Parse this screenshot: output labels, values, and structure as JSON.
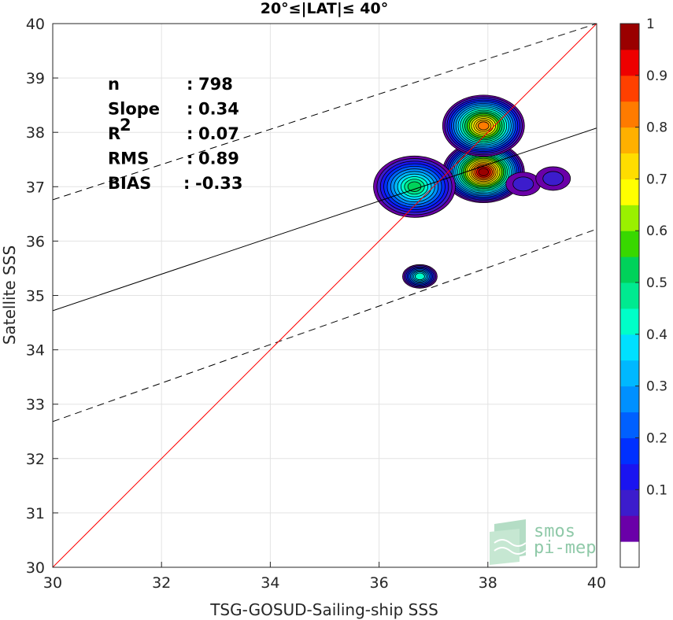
{
  "chart_data": {
    "type": "heatmap",
    "subtype": "density contour scatter",
    "title": "20°≤|LAT|≤ 40°",
    "xlabel": "TSG-GOSUD-Sailing-ship SSS",
    "ylabel": "Satellite SSS",
    "xlim": [
      30,
      40
    ],
    "ylim": [
      30,
      40
    ],
    "xticks": [
      "30",
      "32",
      "34",
      "36",
      "38",
      "40"
    ],
    "yticks": [
      "30",
      "31",
      "32",
      "33",
      "34",
      "35",
      "36",
      "37",
      "38",
      "39",
      "40"
    ],
    "grid": true,
    "stats": [
      {
        "label": "n",
        "sep": ":",
        "value": "798"
      },
      {
        "label": "Slope",
        "sep": ":",
        "value": "0.34"
      },
      {
        "label": "R",
        "sup": "2",
        "sep": ":",
        "value": "0.07"
      },
      {
        "label": "RMS",
        "sep": ":",
        "value": "0.89"
      },
      {
        "label": "BIAS",
        "sep": ":",
        "value": "-0.33"
      }
    ],
    "lines": {
      "identity": {
        "x": [
          30,
          40
        ],
        "y": [
          30,
          40
        ],
        "color": "#ff0000"
      },
      "fit": {
        "x": [
          30,
          40
        ],
        "y": [
          34.72,
          38.08
        ],
        "color": "#000000"
      },
      "fit_upper": {
        "x": [
          30,
          40
        ],
        "y": [
          36.76,
          40.0
        ],
        "color": "#000000",
        "dash": true
      },
      "fit_lower": {
        "x": [
          30,
          40
        ],
        "y": [
          32.68,
          36.22
        ],
        "color": "#000000",
        "dash": true
      }
    },
    "density_peaks": [
      {
        "x": 37.92,
        "y": 37.27,
        "level": 1.0
      },
      {
        "x": 37.92,
        "y": 38.12,
        "level": 0.85
      },
      {
        "x": 36.65,
        "y": 37.0,
        "level": 0.55
      },
      {
        "x": 36.75,
        "y": 35.35,
        "level": 0.45
      },
      {
        "x": 38.65,
        "y": 37.05,
        "level": 0.1
      },
      {
        "x": 39.2,
        "y": 37.15,
        "level": 0.1
      }
    ],
    "colorbar": {
      "range": [
        0,
        1
      ],
      "ticks": [
        "0.1",
        "0.2",
        "0.3",
        "0.4",
        "0.5",
        "0.6",
        "0.7",
        "0.8",
        "0.9",
        "1"
      ],
      "levels": 20,
      "colors": [
        "#ffffff",
        "#6a00a8",
        "#3c1ccc",
        "#1a14f0",
        "#0030ff",
        "#0060ff",
        "#0090ff",
        "#00b8ff",
        "#00e0ff",
        "#00ffc8",
        "#00ea90",
        "#00d25a",
        "#38d800",
        "#9af000",
        "#ffff00",
        "#ffdd00",
        "#ffb000",
        "#ff7b00",
        "#ff4000",
        "#ee0000",
        "#9a0000"
      ]
    }
  },
  "watermark": {
    "line1": "smos",
    "line2": "pi-mep"
  }
}
